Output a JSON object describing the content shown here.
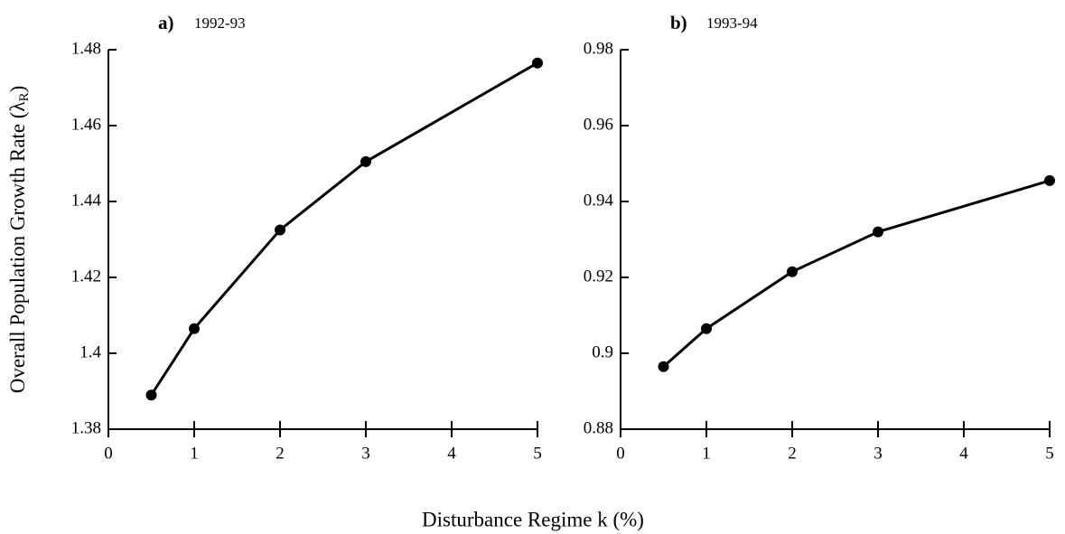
{
  "ylabel": [
    "Overall Population Growth Rate (λ",
    "R",
    ")"
  ],
  "xlabel": "Disturbance Regime  k  (%)",
  "chart_data": [
    {
      "type": "line",
      "label": "a)",
      "title": "1992-93",
      "x": [
        0.5,
        1,
        2,
        3,
        5
      ],
      "series": [
        {
          "color": "#000000",
          "values": [
            1.389,
            1.4065,
            1.4325,
            1.4505,
            1.4765
          ]
        }
      ],
      "xlim": [
        0,
        5
      ],
      "xticks": [
        0,
        1,
        2,
        3,
        4,
        5
      ],
      "ylim": [
        1.38,
        1.48
      ],
      "yticks": [
        1.38,
        1.4,
        1.42,
        1.44,
        1.46,
        1.48
      ]
    },
    {
      "type": "line",
      "label": "b)",
      "title": "1993-94",
      "x": [
        0.5,
        1,
        2,
        3,
        5
      ],
      "series": [
        {
          "color": "#000000",
          "values": [
            0.8965,
            0.9065,
            0.9215,
            0.932,
            0.9455
          ]
        }
      ],
      "xlim": [
        0,
        5
      ],
      "xticks": [
        0,
        1,
        2,
        3,
        4,
        5
      ],
      "ylim": [
        0.88,
        0.98
      ],
      "yticks": [
        0.88,
        0.9,
        0.92,
        0.94,
        0.96,
        0.98
      ]
    }
  ]
}
